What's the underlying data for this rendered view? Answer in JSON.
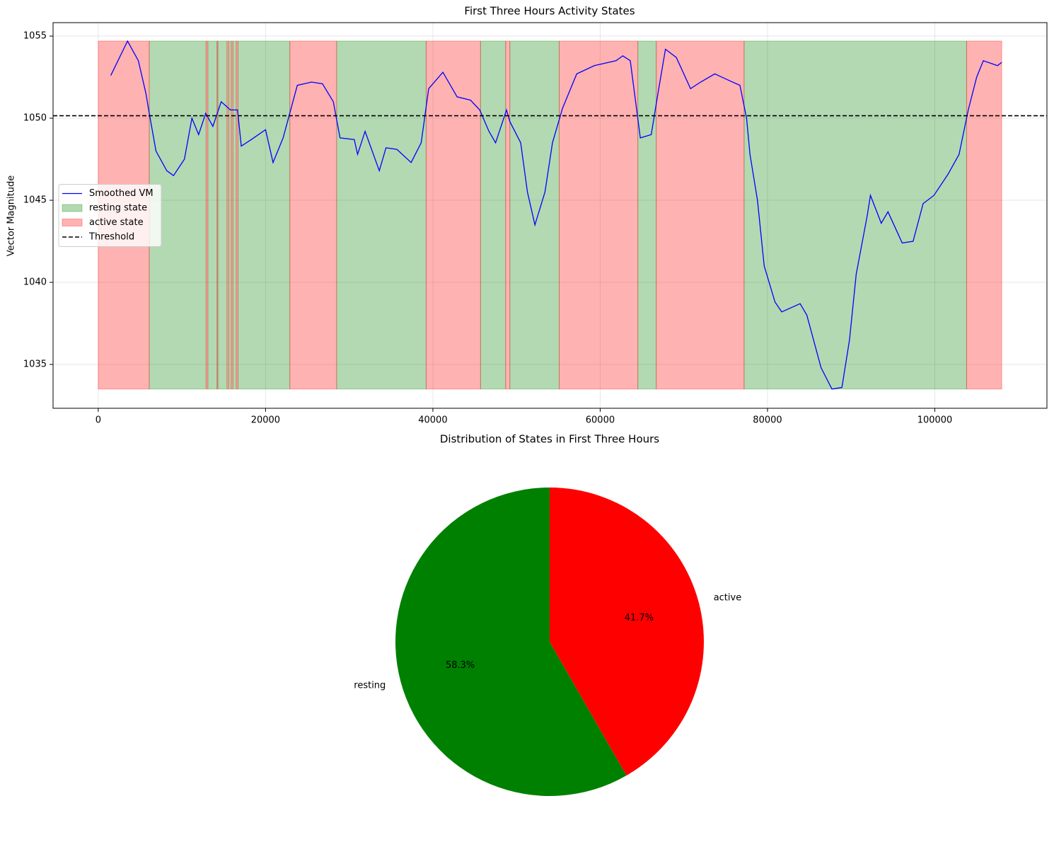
{
  "chart_data": [
    {
      "type": "line",
      "title": "First Three Hours Activity States",
      "ylabel": "Vector Magnitude",
      "xlim": [
        -5400,
        113400
      ],
      "ylim": [
        1032.33,
        1055.82
      ],
      "xticks": [
        0,
        20000,
        40000,
        60000,
        80000,
        100000
      ],
      "yticks": [
        1035,
        1040,
        1045,
        1050,
        1055
      ],
      "grid": true,
      "legend": "center left",
      "series": [
        {
          "name": "Smoothed VM",
          "color": "#0000ff",
          "x": [
            1500,
            3500,
            4800,
            5700,
            6100,
            6900,
            8200,
            9000,
            10300,
            11200,
            12000,
            12850,
            13700,
            14700,
            15800,
            16650,
            17100,
            18300,
            20000,
            20900,
            22100,
            23000,
            23800,
            25500,
            26800,
            28100,
            28900,
            30600,
            31000,
            31900,
            33600,
            34400,
            35700,
            37400,
            38600,
            39500,
            41200,
            42900,
            44500,
            45600,
            46700,
            47500,
            48800,
            49200,
            50500,
            51300,
            52200,
            53400,
            54300,
            55500,
            57200,
            59300,
            61900,
            62700,
            63600,
            64800,
            66100,
            66900,
            67800,
            69100,
            70800,
            72000,
            73700,
            75400,
            76700,
            77500,
            77900,
            78800,
            79600,
            80900,
            81700,
            83900,
            84700,
            86400,
            87700,
            88900,
            89800,
            90600,
            91900,
            92300,
            93600,
            94400,
            96100,
            97400,
            98600,
            99900,
            101600,
            102900,
            104000,
            105000,
            105800,
            107500,
            108000
          ],
          "values": [
            1052.6,
            1054.7,
            1053.5,
            1051.5,
            1050.3,
            1048,
            1046.8,
            1046.5,
            1047.5,
            1050,
            1049,
            1050.3,
            1049.5,
            1051,
            1050.5,
            1050.5,
            1048.3,
            1048.7,
            1049.3,
            1047.3,
            1048.8,
            1050.5,
            1052,
            1052.2,
            1052.1,
            1051,
            1048.8,
            1048.7,
            1047.8,
            1049.2,
            1046.8,
            1048.2,
            1048.1,
            1047.3,
            1048.5,
            1051.8,
            1052.8,
            1051.3,
            1051.1,
            1050.5,
            1049.2,
            1048.5,
            1050.5,
            1049.8,
            1048.5,
            1045.5,
            1043.5,
            1045.5,
            1048.5,
            1050.6,
            1052.7,
            1053.2,
            1053.5,
            1053.8,
            1053.5,
            1048.8,
            1049,
            1051.5,
            1054.2,
            1053.7,
            1051.8,
            1052.2,
            1052.7,
            1052.3,
            1052,
            1050,
            1047.8,
            1045,
            1041,
            1038.8,
            1038.2,
            1038.7,
            1038,
            1034.8,
            1033.5,
            1033.6,
            1036.5,
            1040.5,
            1044,
            1045.3,
            1043.6,
            1044.3,
            1042.4,
            1042.5,
            1044.8,
            1045.3,
            1046.6,
            1047.8,
            1050.5,
            1052.5,
            1053.5,
            1053.2,
            1053.4
          ]
        }
      ],
      "span_series": [
        {
          "name": "resting state",
          "color": "#008000",
          "spans": [
            [
              6100,
              12900
            ],
            [
              13100,
              14200
            ],
            [
              14300,
              15400
            ],
            [
              15600,
              15900
            ],
            [
              16100,
              16500
            ],
            [
              16700,
              22900
            ],
            [
              28500,
              39200
            ],
            [
              45700,
              48700
            ],
            [
              49200,
              55100
            ],
            [
              64500,
              66700
            ],
            [
              77200,
              103800
            ]
          ]
        },
        {
          "name": "active state",
          "color": "#ff0000",
          "spans": [
            [
              0,
              6100
            ],
            [
              12900,
              13100
            ],
            [
              14200,
              14300
            ],
            [
              15400,
              15600
            ],
            [
              15900,
              16100
            ],
            [
              16500,
              16700
            ],
            [
              22900,
              28500
            ],
            [
              39200,
              45700
            ],
            [
              48700,
              49200
            ],
            [
              55100,
              64500
            ],
            [
              66700,
              77200
            ],
            [
              103800,
              108000
            ]
          ]
        }
      ],
      "threshold": {
        "name": "Threshold",
        "value": 1050.15,
        "color": "#000000",
        "style": "dashed"
      }
    },
    {
      "type": "pie",
      "title": "Distribution of States in First Three Hours",
      "categories": [
        "resting",
        "active"
      ],
      "values": [
        58.3,
        41.7
      ],
      "value_labels": [
        "58.3%",
        "41.7%"
      ],
      "colors": [
        "#008000",
        "#ff0000"
      ],
      "startangle": 90
    }
  ]
}
